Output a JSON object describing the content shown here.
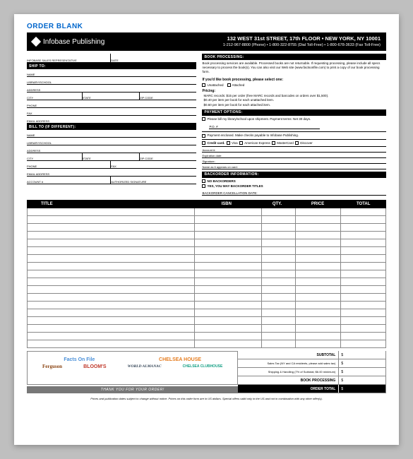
{
  "doc_title": "ORDER BLANK",
  "company": "Infobase Publishing",
  "address": "132 WEST 31st STREET, 17th FLOOR • NEW YORK, NY 10001",
  "phones": "1-212-967-8800 (Phone) • 1-800-322-8755 (Dial Toll-Free) • 1-800-678-3633 (Fax Toll-Free)",
  "left": {
    "rep_row": {
      "a": "INFOBASE SALES REPRESENTATIVE",
      "b": "DATE"
    },
    "ship_to": "SHIP TO:",
    "name": "NAME",
    "library": "LIBRARY/SCHOOL",
    "address": "ADDRESS",
    "city": "CITY",
    "state": "STATE",
    "zip": "ZIP CODE",
    "phone": "PHONE",
    "fax": "FAX",
    "email": "EMAIL ADDRESS",
    "bill_to": "BILL TO (if different):",
    "account": "ACCOUNT #",
    "auth": "AUTHORIZED SIGNATURE"
  },
  "right": {
    "book_proc": "BOOK PROCESSING:",
    "book_proc_text": "Book processing services are available. Processed books are not returnable. If requesting processing, please include all specs necessary to process the book(s). You can also visit our Web site (www.factsonfile.com) to print a copy of our book processing form.",
    "select_head": "If you'd like book processing, please select one:",
    "opt_unattached": "Unattached",
    "opt_attached": "Attached",
    "pricing_head": "Pricing:",
    "pricing_1": "MARC records: $15 per order (free MARC records and barcodes on orders over $1,500).",
    "pricing_2": "$0.40 per item per book for each unattached item.",
    "pricing_3": "$0.60 per item per book for each attached item.",
    "payment_head": "PAYMENT OPTIONS:",
    "pay_bill": "Please bill my library/school upon shipment. Payment terms: Net 30 days.",
    "po": "P.O. #",
    "pay_enclosed": "Payment enclosed. Make checks payable to Infobase Publishing.",
    "pay_cc": "Credit card.",
    "cc_visa": "Visa",
    "cc_amex": "American Express",
    "cc_mc": "MasterCard",
    "cc_disc": "Discover",
    "acct": "Account #:",
    "exp": "Expiration date:",
    "sig": "Signature:",
    "name_card": "Name as it appears on card:",
    "backorder_head": "BACKORDER INFORMATION:",
    "no_back": "NO BACKORDERS",
    "yes_back": "YES, YOU MAY BACKORDER TITLES",
    "cancel": "Backorder cancellation date:"
  },
  "table": {
    "cols": [
      "TITLE",
      "ISBN",
      "QTY.",
      "PRICE",
      "TOTAL"
    ],
    "row_count": 18
  },
  "brands": [
    "Facts On File",
    "CHELSEA HOUSE",
    "Ferguson",
    "BLOOM'S",
    "WORLD ALMANAC",
    "CHELSEA CLUBHOUSE"
  ],
  "totals": {
    "subtotal": "SUBTOTAL",
    "tax": "Sales Tax (NY and CA residents, please add sales tax)",
    "ship": "Shipping & Handling (7% of Subtotal; $6.00 minimum)",
    "proc": "BOOK PROCESSING",
    "order": "ORDER TOTAL",
    "dollar": "$"
  },
  "thank_you": "THANK YOU FOR YOUR ORDER!",
  "footer": "Prices and publication dates subject to change without notice. Prices on this order form are in US dollars. Special offers valid only in the US and not in combination with any other offer(s)."
}
